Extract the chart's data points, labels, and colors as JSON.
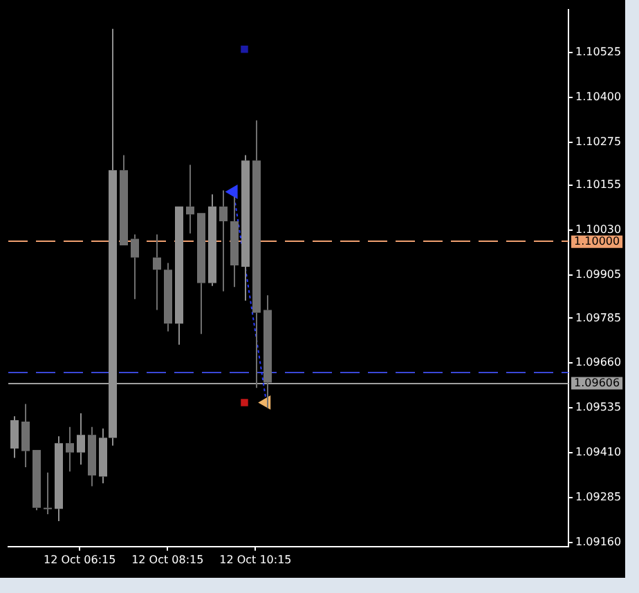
{
  "chart_data": {
    "type": "candlestick",
    "colors": [
      "#909090",
      "#707070",
      "#707070",
      "#707070",
      "#909090",
      "#707070",
      "#909090",
      "#707070",
      "#909090",
      "#909090",
      "#707070",
      "#707070",
      null,
      "#707070",
      "#707070",
      "#909090",
      "#707070",
      "#707070",
      "#909090",
      "#707070",
      "#707070",
      "#909090",
      "#707070",
      "#707070",
      null,
      null,
      null,
      null,
      null,
      null,
      null,
      null,
      null,
      null,
      null,
      null,
      null,
      null,
      null,
      null,
      null,
      null,
      null,
      null,
      null,
      null,
      null,
      null,
      null,
      null,
      null
    ],
    "categories": [
      null,
      null,
      null,
      null,
      null,
      null,
      "12 Oct 06:15",
      null,
      null,
      null,
      null,
      null,
      null,
      null,
      "12 Oct 08:15",
      null,
      null,
      null,
      null,
      null,
      null,
      null,
      "12 Oct 10:15",
      null,
      null,
      null,
      null,
      null,
      null,
      null,
      null,
      null,
      null,
      null,
      null,
      null,
      null,
      null,
      null,
      null,
      null,
      null,
      null,
      null,
      null,
      null,
      null,
      null,
      null,
      null,
      null
    ],
    "ohlc": [
      [
        1.09422,
        1.09512,
        1.09396,
        1.09501
      ],
      [
        1.09497,
        1.09546,
        1.0937,
        1.09415
      ],
      [
        1.09418,
        1.09418,
        1.0925,
        1.09257
      ],
      [
        1.09257,
        1.09355,
        1.09239,
        1.09254
      ],
      [
        1.09254,
        1.09456,
        1.0922,
        1.09437
      ],
      [
        1.09437,
        1.09482,
        1.09358,
        1.09411
      ],
      [
        1.09411,
        1.0952,
        1.09377,
        1.0946
      ],
      [
        1.0946,
        1.09482,
        1.09317,
        1.09347
      ],
      [
        1.09344,
        1.09478,
        1.09325,
        1.09452
      ],
      [
        1.09452,
        1.10591,
        1.0943,
        1.10197
      ],
      [
        1.10197,
        1.10239,
        1.09988,
        1.09988
      ],
      [
        1.10006,
        1.10018,
        1.09838,
        1.09954
      ],
      null,
      [
        1.09954,
        1.10018,
        1.09808,
        1.0992
      ],
      [
        1.0992,
        1.09939,
        1.09748,
        1.0977
      ],
      [
        1.0977,
        1.10096,
        1.09711,
        1.10096
      ],
      [
        1.10096,
        1.10212,
        1.10021,
        1.10074
      ],
      [
        1.10078,
        1.10078,
        1.09741,
        1.09883
      ],
      [
        1.09883,
        1.1013,
        1.09875,
        1.10096
      ],
      [
        1.10096,
        1.10141,
        1.0986,
        1.10055
      ],
      [
        1.10055,
        1.10123,
        1.09872,
        1.09932
      ],
      [
        1.09928,
        1.10239,
        1.09834,
        1.10224
      ],
      [
        1.10224,
        1.10336,
        1.09591,
        1.098
      ],
      [
        1.09808,
        1.09849,
        1.09535,
        1.09606
      ],
      null,
      null,
      null,
      null,
      null,
      null,
      null,
      null,
      null,
      null,
      null,
      null,
      null,
      null,
      null,
      null,
      null,
      null,
      null,
      null,
      null,
      null,
      null,
      null,
      null,
      null,
      null
    ],
    "series": [
      {
        "type": "line",
        "values": [
          null,
          null,
          null,
          null,
          null,
          null,
          null,
          null,
          null,
          null,
          null,
          null,
          null,
          null,
          null,
          null,
          null,
          null,
          null,
          null,
          1.10137,
          null,
          null,
          1.0955,
          null,
          null,
          null,
          null,
          null,
          null,
          null,
          null,
          null,
          null,
          null,
          null,
          null,
          null,
          null,
          null,
          null,
          null,
          null,
          null,
          null,
          null,
          null,
          null,
          null,
          null,
          null
        ],
        "color": "#2a3cff",
        "colors": [
          null,
          null,
          null,
          null,
          null,
          null,
          null,
          null,
          null,
          null,
          null,
          null,
          null,
          null,
          null,
          null,
          null,
          null,
          null,
          null,
          "#2a3cff",
          null,
          null,
          "#f0b468",
          null,
          null,
          null,
          null,
          null,
          null,
          null,
          null,
          null,
          null,
          null,
          null,
          null,
          null,
          null,
          null,
          null,
          null,
          null,
          null,
          null,
          null,
          null,
          null,
          null,
          null,
          null
        ],
        "line_style": "dotted",
        "marker": "triangle"
      },
      {
        "type": "scatter",
        "values": [
          null,
          null,
          null,
          null,
          null,
          null,
          null,
          null,
          null,
          null,
          null,
          null,
          null,
          null,
          null,
          null,
          null,
          null,
          null,
          null,
          null,
          1.10534,
          null,
          null,
          null,
          null,
          null,
          null,
          null,
          null,
          null,
          null,
          null,
          null,
          null,
          null,
          null,
          null,
          null,
          null,
          null,
          null,
          null,
          null,
          null,
          null,
          null,
          null,
          null,
          null,
          null
        ],
        "colors": [
          null,
          null,
          null,
          null,
          null,
          null,
          null,
          null,
          null,
          null,
          null,
          null,
          null,
          null,
          null,
          null,
          null,
          null,
          null,
          null,
          null,
          "#1a1aa8",
          null,
          null,
          null,
          null,
          null,
          null,
          null,
          null,
          null,
          null,
          null,
          null,
          null,
          null,
          null,
          null,
          null,
          null,
          null,
          null,
          null,
          null,
          null,
          null,
          null,
          null,
          null,
          null,
          null
        ],
        "marker": "square"
      },
      {
        "type": "scatter",
        "values": [
          null,
          null,
          null,
          null,
          null,
          null,
          null,
          null,
          null,
          null,
          null,
          null,
          null,
          null,
          null,
          null,
          null,
          null,
          null,
          null,
          null,
          1.0955,
          null,
          null,
          null,
          null,
          null,
          null,
          null,
          null,
          null,
          null,
          null,
          null,
          null,
          null,
          null,
          null,
          null,
          null,
          null,
          null,
          null,
          null,
          null,
          null,
          null,
          null,
          null,
          null,
          null
        ],
        "colors": [
          null,
          null,
          null,
          null,
          null,
          null,
          null,
          null,
          null,
          null,
          null,
          null,
          null,
          null,
          null,
          null,
          null,
          null,
          null,
          null,
          null,
          "#c81818",
          null,
          null,
          null,
          null,
          null,
          null,
          null,
          null,
          null,
          null,
          null,
          null,
          null,
          null,
          null,
          null,
          null,
          null,
          null,
          null,
          null,
          null,
          null,
          null,
          null,
          null,
          null,
          null,
          null
        ],
        "marker": "square"
      }
    ],
    "ref_lines": [
      {
        "axis": "y",
        "value": 1.1,
        "label": "1.10000",
        "color": "#f0a070",
        "line_style": "dashed"
      },
      {
        "axis": "y",
        "value": 1.09606,
        "label": "1.09606",
        "color": "#a0a0a0",
        "line_style": "solid"
      },
      {
        "axis": "y",
        "value": 1.09636,
        "color": "#3a48d8",
        "line_style": "dashed"
      }
    ],
    "ylim": [
      1.09149,
      1.10645
    ],
    "yticks": [
      1.10525,
      {
        "value": 1.104,
        "label": "1.10400"
      },
      1.10275,
      1.10155,
      {
        "value": 1.1003,
        "label": "1.10030"
      },
      1.09905,
      1.09785,
      {
        "value": 1.0966,
        "label": "1.09660"
      },
      1.09535,
      {
        "value": 1.0941,
        "label": "1.09410"
      },
      1.09285,
      {
        "value": 1.0916,
        "label": "1.09160"
      }
    ]
  }
}
